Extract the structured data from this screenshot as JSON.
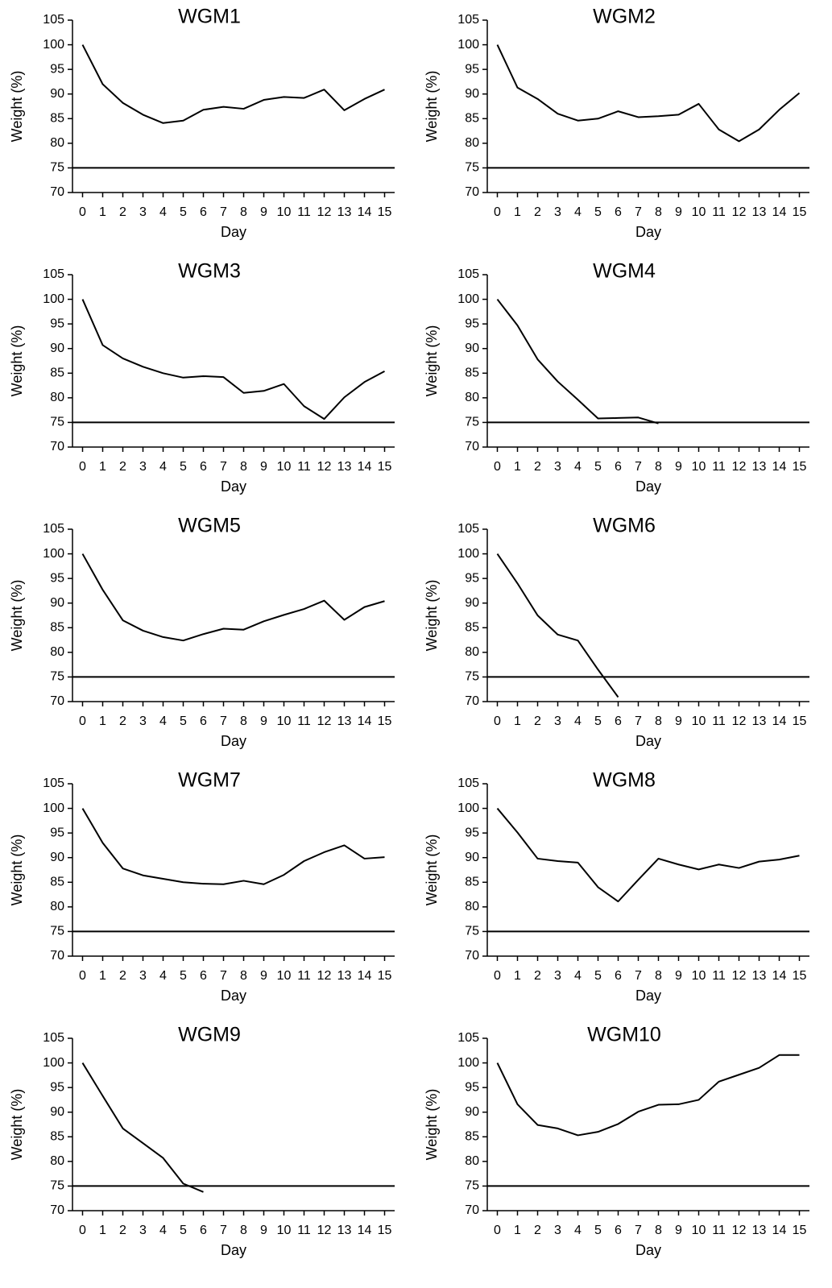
{
  "chart_data": [
    {
      "type": "line",
      "title": "WGM1",
      "xlabel": "Day",
      "ylabel": "Weight (%)",
      "color": "#000000",
      "x": [
        0,
        1,
        2,
        3,
        4,
        5,
        6,
        7,
        8,
        9,
        10,
        11,
        12,
        13,
        14,
        15
      ],
      "values": [
        100,
        92,
        88.2,
        85.8,
        84.1,
        84.6,
        86.8,
        87.4,
        87.0,
        88.8,
        89.4,
        89.2,
        90.9,
        86.7,
        89.0,
        90.9
      ],
      "xlim": [
        -0.5,
        15.5
      ],
      "xticks": [
        0,
        1,
        2,
        3,
        4,
        5,
        6,
        7,
        8,
        9,
        10,
        11,
        12,
        13,
        14,
        15
      ],
      "ylim": [
        70,
        105
      ],
      "yticks": [
        70,
        75,
        80,
        85,
        90,
        95,
        100,
        105
      ],
      "reference_line": 75,
      "grid": false
    },
    {
      "type": "line",
      "title": "WGM2",
      "xlabel": "Day",
      "ylabel": "Weight (%)",
      "color": "#000000",
      "x": [
        0,
        1,
        2,
        3,
        4,
        5,
        6,
        7,
        8,
        9,
        10,
        11,
        12,
        13,
        14,
        15
      ],
      "values": [
        100,
        91.3,
        89.0,
        86.0,
        84.6,
        85.0,
        86.5,
        85.3,
        85.5,
        85.8,
        88.0,
        82.8,
        80.4,
        82.8,
        86.8,
        90.2
      ],
      "xlim": [
        -0.5,
        15.5
      ],
      "xticks": [
        0,
        1,
        2,
        3,
        4,
        5,
        6,
        7,
        8,
        9,
        10,
        11,
        12,
        13,
        14,
        15
      ],
      "ylim": [
        70,
        105
      ],
      "yticks": [
        70,
        75,
        80,
        85,
        90,
        95,
        100,
        105
      ],
      "reference_line": 75,
      "grid": false
    },
    {
      "type": "line",
      "title": "WGM3",
      "xlabel": "Day",
      "ylabel": "Weight (%)",
      "color": "#000000",
      "x": [
        0,
        1,
        2,
        3,
        4,
        5,
        6,
        7,
        8,
        9,
        10,
        11,
        12,
        13,
        14,
        15
      ],
      "values": [
        100,
        90.7,
        88.0,
        86.3,
        85.0,
        84.1,
        84.4,
        84.2,
        81.0,
        81.4,
        82.8,
        78.3,
        75.7,
        80.1,
        83.2,
        85.4
      ],
      "xlim": [
        -0.5,
        15.5
      ],
      "xticks": [
        0,
        1,
        2,
        3,
        4,
        5,
        6,
        7,
        8,
        9,
        10,
        11,
        12,
        13,
        14,
        15
      ],
      "ylim": [
        70,
        105
      ],
      "yticks": [
        70,
        75,
        80,
        85,
        90,
        95,
        100,
        105
      ],
      "reference_line": 75,
      "grid": false
    },
    {
      "type": "line",
      "title": "WGM4",
      "xlabel": "Day",
      "ylabel": "Weight (%)",
      "color": "#000000",
      "x": [
        0,
        1,
        2,
        3,
        4,
        5,
        6,
        7,
        8,
        9,
        10,
        11,
        12,
        13,
        14,
        15
      ],
      "values": [
        100,
        94.7,
        87.8,
        83.3,
        79.6,
        75.8,
        75.9,
        76.0,
        74.8,
        null,
        null,
        null,
        null,
        null,
        null,
        null
      ],
      "xlim": [
        -0.5,
        15.5
      ],
      "xticks": [
        0,
        1,
        2,
        3,
        4,
        5,
        6,
        7,
        8,
        9,
        10,
        11,
        12,
        13,
        14,
        15
      ],
      "ylim": [
        70,
        105
      ],
      "yticks": [
        70,
        75,
        80,
        85,
        90,
        95,
        100,
        105
      ],
      "reference_line": 75,
      "grid": false
    },
    {
      "type": "line",
      "title": "WGM5",
      "xlabel": "Day",
      "ylabel": "Weight (%)",
      "color": "#000000",
      "x": [
        0,
        1,
        2,
        3,
        4,
        5,
        6,
        7,
        8,
        9,
        10,
        11,
        12,
        13,
        14,
        15
      ],
      "values": [
        100,
        92.7,
        86.5,
        84.4,
        83.1,
        82.4,
        83.7,
        84.8,
        84.6,
        86.3,
        87.6,
        88.8,
        90.5,
        86.6,
        89.2,
        90.4
      ],
      "xlim": [
        -0.5,
        15.5
      ],
      "xticks": [
        0,
        1,
        2,
        3,
        4,
        5,
        6,
        7,
        8,
        9,
        10,
        11,
        12,
        13,
        14,
        15
      ],
      "ylim": [
        70,
        105
      ],
      "yticks": [
        70,
        75,
        80,
        85,
        90,
        95,
        100,
        105
      ],
      "reference_line": 75,
      "grid": false
    },
    {
      "type": "line",
      "title": "WGM6",
      "xlabel": "Day",
      "ylabel": "Weight (%)",
      "color": "#000000",
      "x": [
        0,
        1,
        2,
        3,
        4,
        5,
        6,
        7,
        8,
        9,
        10,
        11,
        12,
        13,
        14,
        15
      ],
      "values": [
        100,
        94.0,
        87.5,
        83.6,
        82.4,
        76.5,
        70.9,
        null,
        null,
        null,
        null,
        null,
        null,
        null,
        null,
        null
      ],
      "xlim": [
        -0.5,
        15.5
      ],
      "xticks": [
        0,
        1,
        2,
        3,
        4,
        5,
        6,
        7,
        8,
        9,
        10,
        11,
        12,
        13,
        14,
        15
      ],
      "ylim": [
        70,
        105
      ],
      "yticks": [
        70,
        75,
        80,
        85,
        90,
        95,
        100,
        105
      ],
      "reference_line": 75,
      "grid": false
    },
    {
      "type": "line",
      "title": "WGM7",
      "xlabel": "Day",
      "ylabel": "Weight (%)",
      "color": "#000000",
      "x": [
        0,
        1,
        2,
        3,
        4,
        5,
        6,
        7,
        8,
        9,
        10,
        11,
        12,
        13,
        14,
        15
      ],
      "values": [
        100,
        93.0,
        87.8,
        86.4,
        85.7,
        85.0,
        84.7,
        84.6,
        85.3,
        84.6,
        86.5,
        89.3,
        91.1,
        92.5,
        89.8,
        90.1
      ],
      "xlim": [
        -0.5,
        15.5
      ],
      "xticks": [
        0,
        1,
        2,
        3,
        4,
        5,
        6,
        7,
        8,
        9,
        10,
        11,
        12,
        13,
        14,
        15
      ],
      "ylim": [
        70,
        105
      ],
      "yticks": [
        70,
        75,
        80,
        85,
        90,
        95,
        100,
        105
      ],
      "reference_line": 75,
      "grid": false
    },
    {
      "type": "line",
      "title": "WGM8",
      "xlabel": "Day",
      "ylabel": "Weight (%)",
      "color": "#000000",
      "x": [
        0,
        1,
        2,
        3,
        4,
        5,
        6,
        7,
        8,
        9,
        10,
        11,
        12,
        13,
        14,
        15
      ],
      "values": [
        100,
        95.1,
        89.8,
        89.3,
        89.0,
        84.0,
        81.1,
        85.5,
        89.8,
        88.6,
        87.6,
        88.6,
        87.9,
        89.2,
        89.6,
        90.4
      ],
      "xlim": [
        -0.5,
        15.5
      ],
      "xticks": [
        0,
        1,
        2,
        3,
        4,
        5,
        6,
        7,
        8,
        9,
        10,
        11,
        12,
        13,
        14,
        15
      ],
      "ylim": [
        70,
        105
      ],
      "yticks": [
        70,
        75,
        80,
        85,
        90,
        95,
        100,
        105
      ],
      "reference_line": 75,
      "grid": false
    },
    {
      "type": "line",
      "title": "WGM9",
      "xlabel": "Day",
      "ylabel": "Weight (%)",
      "color": "#000000",
      "x": [
        0,
        1,
        2,
        3,
        4,
        5,
        6,
        7,
        8,
        9,
        10,
        11,
        12,
        13,
        14,
        15
      ],
      "values": [
        100,
        93.3,
        86.7,
        83.7,
        80.7,
        75.5,
        73.8,
        null,
        null,
        null,
        null,
        null,
        null,
        null,
        null,
        null
      ],
      "xlim": [
        -0.5,
        15.5
      ],
      "xticks": [
        0,
        1,
        2,
        3,
        4,
        5,
        6,
        7,
        8,
        9,
        10,
        11,
        12,
        13,
        14,
        15
      ],
      "ylim": [
        70,
        105
      ],
      "yticks": [
        70,
        75,
        80,
        85,
        90,
        95,
        100,
        105
      ],
      "reference_line": 75,
      "grid": false
    },
    {
      "type": "line",
      "title": "WGM10",
      "xlabel": "Day",
      "ylabel": "Weight (%)",
      "color": "#000000",
      "x": [
        0,
        1,
        2,
        3,
        4,
        5,
        6,
        7,
        8,
        9,
        10,
        11,
        12,
        13,
        14,
        15
      ],
      "values": [
        100,
        91.6,
        87.4,
        86.7,
        85.3,
        86.0,
        87.6,
        90.1,
        91.5,
        91.6,
        92.5,
        96.2,
        97.6,
        99.0,
        101.6,
        101.6
      ],
      "xlim": [
        -0.5,
        15.5
      ],
      "xticks": [
        0,
        1,
        2,
        3,
        4,
        5,
        6,
        7,
        8,
        9,
        10,
        11,
        12,
        13,
        14,
        15
      ],
      "ylim": [
        70,
        105
      ],
      "yticks": [
        70,
        75,
        80,
        85,
        90,
        95,
        100,
        105
      ],
      "reference_line": 75,
      "grid": false
    }
  ]
}
